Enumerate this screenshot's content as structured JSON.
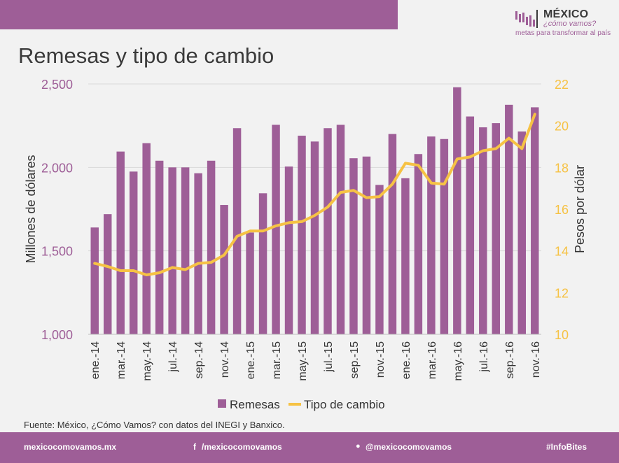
{
  "header": {
    "title": "Remesas y tipo de cambio",
    "logo_title": "MÉXICO",
    "logo_subtitle": "¿cómo vamos?",
    "logo_tagline": "metas para transformar al país"
  },
  "footer": {
    "website": "mexicocomovamos.mx",
    "facebook": "/mexicocomovamos",
    "twitter": "@mexicocomovamos",
    "hashtag": "#InfoBites",
    "facebook_icon": "f",
    "twitter_icon": "🐦"
  },
  "source": "Fuente: México, ¿Cómo Vamos? con datos del INEGI y Banxico.",
  "colors": {
    "bar": "#9e5e97",
    "line": "#f6c244",
    "left_axis": "#9e5e97",
    "right_axis": "#f6c244"
  },
  "chart_data": {
    "type": "bar+line",
    "categories": [
      "ene.-14",
      "feb.-14",
      "mar.-14",
      "abr.-14",
      "may.-14",
      "jun.-14",
      "jul.-14",
      "ago.-14",
      "sep.-14",
      "oct.-14",
      "nov.-14",
      "dic.-14",
      "ene.-15",
      "feb.-15",
      "mar.-15",
      "abr.-15",
      "may.-15",
      "jun.-15",
      "jul.-15",
      "ago.-15",
      "sep.-15",
      "oct.-15",
      "nov.-15",
      "dic.-15",
      "ene.-16",
      "feb.-16",
      "mar.-16",
      "abr.-16",
      "may.-16",
      "jun.-16",
      "jul.-16",
      "ago.-16",
      "sep.-16",
      "oct.-16",
      "nov.-16"
    ],
    "tick_labels": [
      "ene.-14",
      "mar.-14",
      "may.-14",
      "jul.-14",
      "sep.-14",
      "nov.-14",
      "ene.-15",
      "mar.-15",
      "may.-15",
      "jul.-15",
      "sep.-15",
      "nov.-15",
      "ene.-16",
      "mar.-16",
      "may.-16",
      "jul.-16",
      "sep.-16",
      "nov.-16"
    ],
    "series": [
      {
        "name": "Remesas",
        "axis": "left",
        "type": "bar",
        "values": [
          1640,
          1720,
          2095,
          1975,
          2145,
          2040,
          2000,
          2000,
          1965,
          2040,
          1775,
          2235,
          1610,
          1845,
          2255,
          2005,
          2190,
          2155,
          2235,
          2255,
          2055,
          2065,
          1895,
          2200,
          1935,
          2080,
          2185,
          2170,
          2480,
          2305,
          2240,
          2265,
          2375,
          2215,
          2360
        ]
      },
      {
        "name": "Tipo de cambio",
        "axis": "right",
        "type": "line",
        "values": [
          13.4,
          13.25,
          13.05,
          13.05,
          12.85,
          12.95,
          13.2,
          13.1,
          13.4,
          13.45,
          13.8,
          14.7,
          14.95,
          14.95,
          15.2,
          15.35,
          15.4,
          15.7,
          16.1,
          16.8,
          16.9,
          16.55,
          16.6,
          17.2,
          18.2,
          18.1,
          17.25,
          17.2,
          18.4,
          18.5,
          18.8,
          18.9,
          19.4,
          18.9,
          20.55
        ]
      }
    ],
    "left_axis": {
      "label": "Millones de dólares",
      "ylim": [
        1000,
        2500
      ],
      "ticks": [
        "1,000",
        "1,500",
        "2,000",
        "2,500"
      ],
      "tick_values": [
        1000,
        1500,
        2000,
        2500
      ]
    },
    "right_axis": {
      "label": "Pesos por dólar",
      "ylim": [
        10,
        22
      ],
      "ticks": [
        "10",
        "12",
        "14",
        "16",
        "18",
        "20",
        "22"
      ],
      "tick_values": [
        10,
        12,
        14,
        16,
        18,
        20,
        22
      ]
    },
    "grid": true,
    "legend_position": "bottom"
  }
}
